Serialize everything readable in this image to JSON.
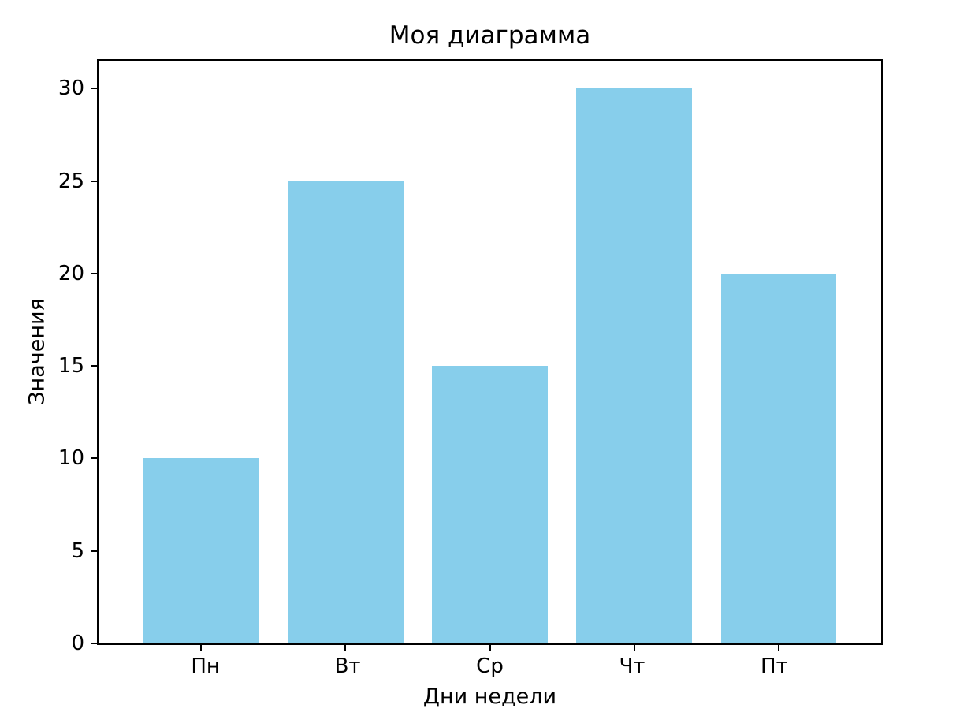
{
  "chart_data": {
    "type": "bar",
    "title": "Моя диаграмма",
    "xlabel": "Дни недели",
    "ylabel": "Значения",
    "categories": [
      "Пн",
      "Вт",
      "Ср",
      "Чт",
      "Пт"
    ],
    "values": [
      10,
      25,
      15,
      30,
      20
    ],
    "ylim": [
      0,
      31.5
    ],
    "yticks": [
      0,
      5,
      10,
      15,
      20,
      25,
      30
    ],
    "bar_color": "#87CEEB",
    "axis_color": "#000000",
    "background": "#ffffff",
    "grid": false,
    "legend": "none"
  }
}
